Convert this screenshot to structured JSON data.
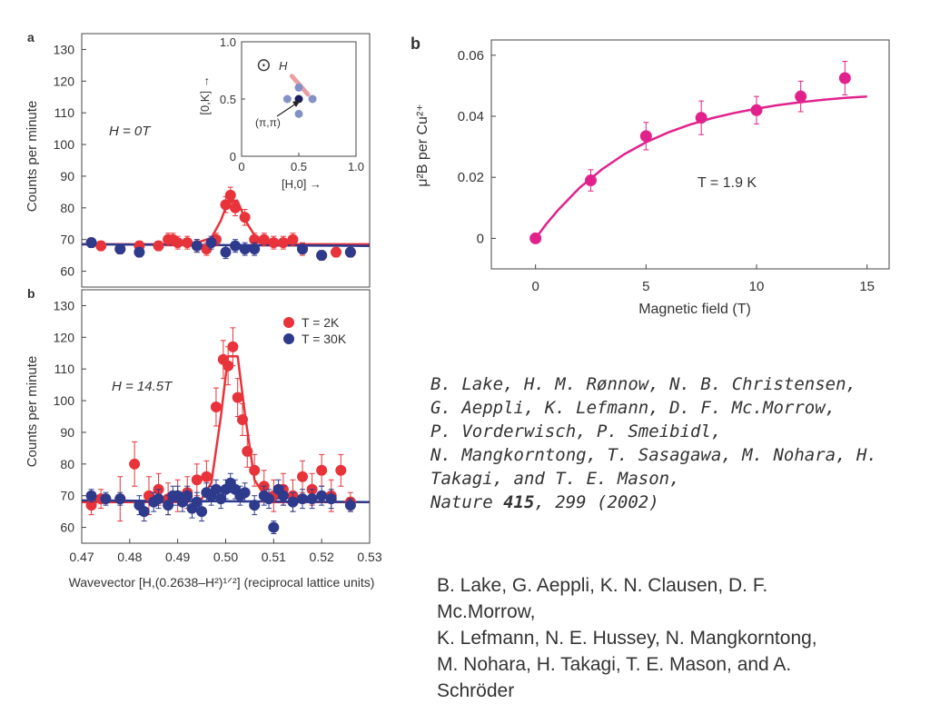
{
  "colors": {
    "red": "#e8333a",
    "blue": "#2e3a8c",
    "magenta": "#e2228c",
    "axis": "#444444"
  },
  "chart_data": [
    {
      "id": "panel-a-left",
      "type": "scatter",
      "panel_label": "a",
      "annotation": "H = 0T",
      "ylabel": "Counts per minute",
      "xlim": [
        0.47,
        0.53
      ],
      "ylim": [
        55,
        135
      ],
      "y_ticks": [
        "60",
        "70",
        "80",
        "90",
        "100",
        "110",
        "120",
        "130"
      ],
      "series": [
        {
          "name": "T = 2K",
          "color": "#e8333a",
          "x": [
            0.472,
            0.474,
            0.478,
            0.482,
            0.486,
            0.488,
            0.489,
            0.49,
            0.492,
            0.494,
            0.496,
            0.498,
            0.5,
            0.501,
            0.502,
            0.504,
            0.506,
            0.508,
            0.51,
            0.512,
            0.514,
            0.516,
            0.52,
            0.523,
            0.526
          ],
          "y": [
            69,
            68,
            67,
            68,
            68,
            70,
            70,
            69,
            69,
            68,
            67,
            70,
            81,
            84,
            80,
            77,
            70,
            70,
            69,
            69,
            70,
            67,
            65,
            66,
            66
          ],
          "err": [
            1.5,
            1.5,
            1.5,
            1.5,
            1.5,
            2,
            2,
            2,
            2,
            2,
            2,
            2,
            2.5,
            2.5,
            2.5,
            2.5,
            2,
            2,
            2,
            2,
            2,
            2,
            1.5,
            1.5,
            1.5
          ]
        },
        {
          "name": "T = 30K",
          "color": "#2e3a8c",
          "x": [
            0.472,
            0.478,
            0.482,
            0.494,
            0.497,
            0.5,
            0.502,
            0.504,
            0.506,
            0.516,
            0.52,
            0.526
          ],
          "y": [
            69,
            67,
            66,
            68,
            69,
            66,
            68,
            67,
            67,
            67,
            65,
            66
          ],
          "err": [
            1.5,
            1.5,
            1.5,
            2,
            2,
            2,
            2,
            2,
            2,
            1.5,
            1.5,
            1.5
          ]
        }
      ],
      "fit_lines": [
        {
          "color": "#e8333a",
          "x": [
            0.47,
            0.49,
            0.494,
            0.497,
            0.499,
            0.5005,
            0.5025,
            0.5045,
            0.507,
            0.51,
            0.53
          ],
          "y": [
            68.5,
            68.5,
            69,
            70.5,
            76,
            82,
            82,
            75,
            69,
            68.5,
            68.5
          ]
        },
        {
          "color": "#2e3a8c",
          "x": [
            0.47,
            0.53
          ],
          "y": [
            68.5,
            68
          ]
        }
      ]
    },
    {
      "id": "inset",
      "type": "scatter",
      "xlabel": "[H,0] →",
      "ylabel": "[0,K] →",
      "xlim": [
        0,
        1.0
      ],
      "ylim": [
        0,
        1.0
      ],
      "x_ticks": [
        "0",
        "0.5",
        "1.0"
      ],
      "y_ticks": [
        "0",
        "0.5",
        "1.0"
      ],
      "legend_symbol": "⊙",
      "legend_label": "H",
      "point_label": "(π,π)",
      "points": [
        {
          "x": 0.5,
          "y": 0.5,
          "color": "#1a1f5e"
        },
        {
          "x": 0.4,
          "y": 0.5,
          "color": "#8391c7"
        },
        {
          "x": 0.62,
          "y": 0.5,
          "color": "#8391c7"
        },
        {
          "x": 0.5,
          "y": 0.37,
          "color": "#8391c7"
        },
        {
          "x": 0.5,
          "y": 0.6,
          "color": "#8391c7"
        }
      ],
      "diagonal_segment": {
        "x": [
          0.44,
          0.58
        ],
        "y": [
          0.7,
          0.54
        ],
        "color": "#e8a0a3"
      }
    },
    {
      "id": "panel-b-left",
      "type": "scatter",
      "panel_label": "b",
      "annotation": "H = 14.5T",
      "ylabel": "Counts per minute",
      "xlabel": "Wavevector [H,(0.2638–H²)¹ᐟ²] (reciprocal lattice units)",
      "xlim": [
        0.47,
        0.53
      ],
      "ylim": [
        55,
        135
      ],
      "x_ticks": [
        "0.47",
        "0.48",
        "0.49",
        "0.50",
        "0.51",
        "0.52",
        "0.53"
      ],
      "y_ticks": [
        "60",
        "70",
        "80",
        "90",
        "100",
        "110",
        "120",
        "130"
      ],
      "legend": [
        {
          "label": "T = 2K",
          "color": "#e8333a"
        },
        {
          "label": "T = 30K",
          "color": "#2e3a8c"
        }
      ],
      "series": [
        {
          "name": "T = 2K",
          "color": "#e8333a",
          "x": [
            0.472,
            0.474,
            0.478,
            0.481,
            0.484,
            0.486,
            0.488,
            0.49,
            0.492,
            0.494,
            0.496,
            0.498,
            0.4995,
            0.5005,
            0.5015,
            0.5025,
            0.5035,
            0.5045,
            0.506,
            0.508,
            0.51,
            0.512,
            0.514,
            0.516,
            0.518,
            0.52,
            0.522,
            0.524,
            0.526
          ],
          "y": [
            67,
            69,
            69,
            80,
            70,
            72,
            69,
            70,
            71,
            75,
            76,
            98,
            113,
            111,
            117,
            101,
            94,
            84,
            78,
            73,
            70,
            72,
            70,
            76,
            72,
            78,
            70,
            78,
            68
          ],
          "err": [
            3,
            3,
            7,
            7,
            6,
            5,
            5,
            5,
            5,
            5,
            5,
            6,
            6,
            6,
            6,
            6,
            5,
            5,
            5,
            5,
            5,
            5,
            5,
            5,
            5,
            5,
            5,
            5,
            3
          ]
        },
        {
          "name": "T = 30K",
          "color": "#2e3a8c",
          "x": [
            0.472,
            0.475,
            0.478,
            0.482,
            0.483,
            0.485,
            0.486,
            0.488,
            0.489,
            0.49,
            0.491,
            0.492,
            0.493,
            0.494,
            0.495,
            0.496,
            0.497,
            0.498,
            0.499,
            0.5,
            0.501,
            0.502,
            0.503,
            0.504,
            0.506,
            0.508,
            0.509,
            0.51,
            0.511,
            0.512,
            0.514,
            0.516,
            0.518,
            0.52,
            0.522,
            0.526
          ],
          "y": [
            70,
            69,
            69,
            67,
            65,
            68,
            69,
            67,
            70,
            70,
            68,
            70,
            66,
            68,
            65,
            71,
            70,
            72,
            69,
            72,
            74,
            72,
            70,
            71,
            67,
            70,
            69,
            60,
            72,
            70,
            68,
            69,
            69,
            70,
            69,
            67
          ],
          "err": [
            2,
            2,
            2,
            3,
            3,
            3,
            3,
            3,
            3,
            3,
            3,
            3,
            3,
            3,
            3,
            3,
            3,
            3,
            3,
            3,
            3,
            3,
            3,
            3,
            3,
            3,
            3,
            2,
            3,
            3,
            3,
            3,
            3,
            3,
            3,
            2
          ]
        }
      ],
      "fit_lines": [
        {
          "color": "#e8333a",
          "x": [
            0.47,
            0.492,
            0.495,
            0.497,
            0.499,
            0.5005,
            0.5025,
            0.504,
            0.506,
            0.509,
            0.53
          ],
          "y": [
            68,
            68,
            69,
            74,
            95,
            114,
            114,
            96,
            75,
            68,
            68
          ]
        },
        {
          "color": "#2e3a8c",
          "x": [
            0.47,
            0.53
          ],
          "y": [
            68.5,
            68
          ]
        }
      ]
    },
    {
      "id": "panel-b-right",
      "type": "scatter",
      "panel_label": "b",
      "annotation": "T = 1.9 K",
      "xlabel": "Magnetic field (T)",
      "ylabel": "μ²B per Cu²⁺",
      "xlim": [
        -2,
        16
      ],
      "ylim": [
        -0.01,
        0.065
      ],
      "x_ticks": [
        "0",
        "5",
        "10",
        "15"
      ],
      "y_ticks": [
        "0",
        "0.02",
        "0.04",
        "0.06"
      ],
      "series": [
        {
          "name": "data",
          "color": "#e2228c",
          "x": [
            0,
            2.5,
            5,
            7.5,
            10,
            12,
            14
          ],
          "y": [
            0.0,
            0.019,
            0.0335,
            0.0395,
            0.042,
            0.0465,
            0.0525
          ],
          "err": [
            0.0015,
            0.0035,
            0.0045,
            0.0055,
            0.0045,
            0.005,
            0.0055
          ]
        }
      ],
      "fit_lines": [
        {
          "color": "#e2228c",
          "x": [
            0,
            0.5,
            1,
            2,
            3,
            4,
            5,
            6,
            7,
            8,
            9,
            10,
            11,
            12,
            13,
            14,
            15
          ],
          "y": [
            0,
            0.0048,
            0.0091,
            0.0166,
            0.0226,
            0.0275,
            0.0315,
            0.0347,
            0.0373,
            0.0394,
            0.0411,
            0.0425,
            0.0437,
            0.0446,
            0.0454,
            0.046,
            0.0465
          ]
        }
      ]
    }
  ],
  "references": {
    "ref1_lines": [
      "B. Lake, H. M. Rønnow, N. B. Christensen,",
      "G. Aeppli, K. Lefmann, D. F. Mc.Morrow,",
      "P. Vorderwisch, P. Smeibidl,",
      "N. Mangkorntong, T. Sasagawa, M. Nohara, H.",
      "Takagi, and T. E. Mason,"
    ],
    "ref1_journal": "Nature",
    "ref1_volume": "415",
    "ref1_rest": ", 299 (2002)",
    "ref2_lines": [
      "B. Lake, G. Aeppli, K. N. Clausen, D. F.",
      "Mc.Morrow,",
      "K. Lefmann, N. E. Hussey, N. Mangkorntong,",
      "M. Nohara, H. Takagi,  T. E. Mason, and A.",
      "Schröder"
    ]
  }
}
